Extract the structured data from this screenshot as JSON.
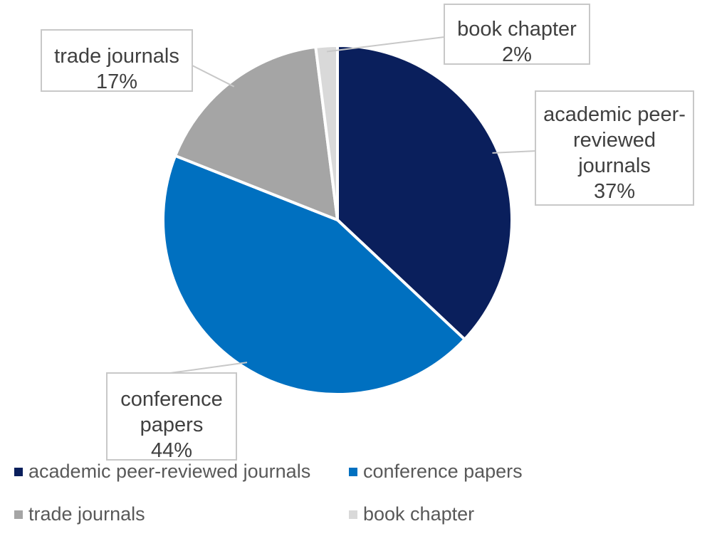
{
  "chart_data": {
    "type": "pie",
    "title": "",
    "legend_position": "bottom",
    "start_angle_deg": 0,
    "direction": "clockwise",
    "slices": [
      {
        "name": "academic peer-reviewed journals",
        "value": 37,
        "percent_label": "37%",
        "color": "#0a1f5c",
        "label_lines": [
          "academic peer-",
          "reviewed",
          "journals"
        ]
      },
      {
        "name": "conference papers",
        "value": 44,
        "percent_label": "44%",
        "color": "#0070c0",
        "label_lines": [
          "conference",
          "papers"
        ]
      },
      {
        "name": "trade journals",
        "value": 17,
        "percent_label": "17%",
        "color": "#a5a5a5",
        "label_lines": [
          "trade journals"
        ]
      },
      {
        "name": "book chapter",
        "value": 2,
        "percent_label": "2%",
        "color": "#d9d9d9",
        "label_lines": [
          "book chapter"
        ]
      }
    ]
  }
}
